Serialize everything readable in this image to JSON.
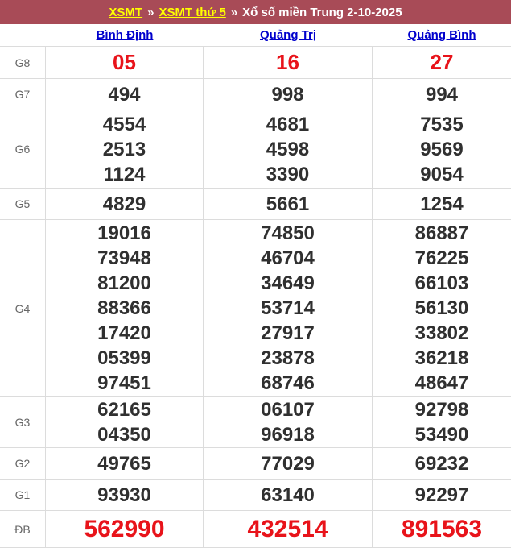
{
  "breadcrumb": {
    "link1": "XSMT",
    "sep": "»",
    "link2": "XSMT thứ 5",
    "title": "Xổ số miền Trung 2-10-2025"
  },
  "columns": [
    "Bình Định",
    "Quảng Trị",
    "Quảng Bình"
  ],
  "colors": {
    "header_bg": "#a84b57",
    "breadcrumb_link": "#ffff00",
    "breadcrumb_text": "#ffffff",
    "province_link": "#0000cc",
    "number_text": "#303030",
    "highlight_red": "#e8131a",
    "row_label": "#666666",
    "border": "#dcdcdc"
  },
  "table": {
    "rows": [
      {
        "label": "G8",
        "variant": "g8",
        "cells": [
          [
            "05"
          ],
          [
            "16"
          ],
          [
            "27"
          ]
        ]
      },
      {
        "label": "G7",
        "variant": "",
        "cells": [
          [
            "494"
          ],
          [
            "998"
          ],
          [
            "994"
          ]
        ]
      },
      {
        "label": "G6",
        "variant": "",
        "cells": [
          [
            "4554",
            "2513",
            "1124"
          ],
          [
            "4681",
            "4598",
            "3390"
          ],
          [
            "7535",
            "9569",
            "9054"
          ]
        ]
      },
      {
        "label": "G5",
        "variant": "",
        "cells": [
          [
            "4829"
          ],
          [
            "5661"
          ],
          [
            "1254"
          ]
        ]
      },
      {
        "label": "G4",
        "variant": "",
        "cells": [
          [
            "19016",
            "73948",
            "81200",
            "88366",
            "17420",
            "05399",
            "97451"
          ],
          [
            "74850",
            "46704",
            "34649",
            "53714",
            "27917",
            "23878",
            "68746"
          ],
          [
            "86887",
            "76225",
            "66103",
            "56130",
            "33802",
            "36218",
            "48647"
          ]
        ]
      },
      {
        "label": "G3",
        "variant": "",
        "cells": [
          [
            "62165",
            "04350"
          ],
          [
            "06107",
            "96918"
          ],
          [
            "92798",
            "53490"
          ]
        ]
      },
      {
        "label": "G2",
        "variant": "",
        "cells": [
          [
            "49765"
          ],
          [
            "77029"
          ],
          [
            "69232"
          ]
        ]
      },
      {
        "label": "G1",
        "variant": "",
        "cells": [
          [
            "93930"
          ],
          [
            "63140"
          ],
          [
            "92297"
          ]
        ]
      },
      {
        "label": "ĐB",
        "variant": "db",
        "cells": [
          [
            "562990"
          ],
          [
            "432514"
          ],
          [
            "891563"
          ]
        ]
      }
    ]
  }
}
